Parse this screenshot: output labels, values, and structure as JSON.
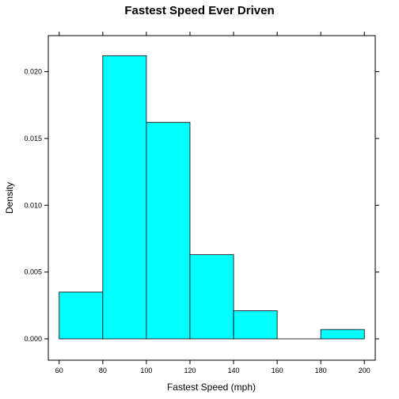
{
  "chart_data": {
    "type": "bar",
    "title": "Fastest Speed Ever Driven",
    "xlabel": "Fastest Speed (mph)",
    "ylabel": "Density",
    "bins": [
      {
        "from": 60,
        "to": 80,
        "density": 0.0035
      },
      {
        "from": 80,
        "to": 100,
        "density": 0.0212
      },
      {
        "from": 100,
        "to": 120,
        "density": 0.0162
      },
      {
        "from": 120,
        "to": 140,
        "density": 0.0063
      },
      {
        "from": 140,
        "to": 160,
        "density": 0.0021
      },
      {
        "from": 160,
        "to": 180,
        "density": 0.0
      },
      {
        "from": 180,
        "to": 200,
        "density": 0.0007
      }
    ],
    "xlim": [
      55,
      205
    ],
    "ylim": [
      -0.0016,
      0.0227
    ],
    "x_ticks": [
      60,
      80,
      100,
      120,
      140,
      160,
      180,
      200
    ],
    "x_tick_labels": [
      "60",
      "80",
      "100",
      "120",
      "140",
      "160",
      "180",
      "200"
    ],
    "y_ticks": [
      0.0,
      0.005,
      0.01,
      0.015,
      0.02
    ],
    "y_tick_labels": [
      "0.000",
      "0.005",
      "0.010",
      "0.015",
      "0.020"
    ],
    "grid": false,
    "colors": {
      "bar_fill": "#00FFFF",
      "bar_stroke": "#000000"
    }
  }
}
